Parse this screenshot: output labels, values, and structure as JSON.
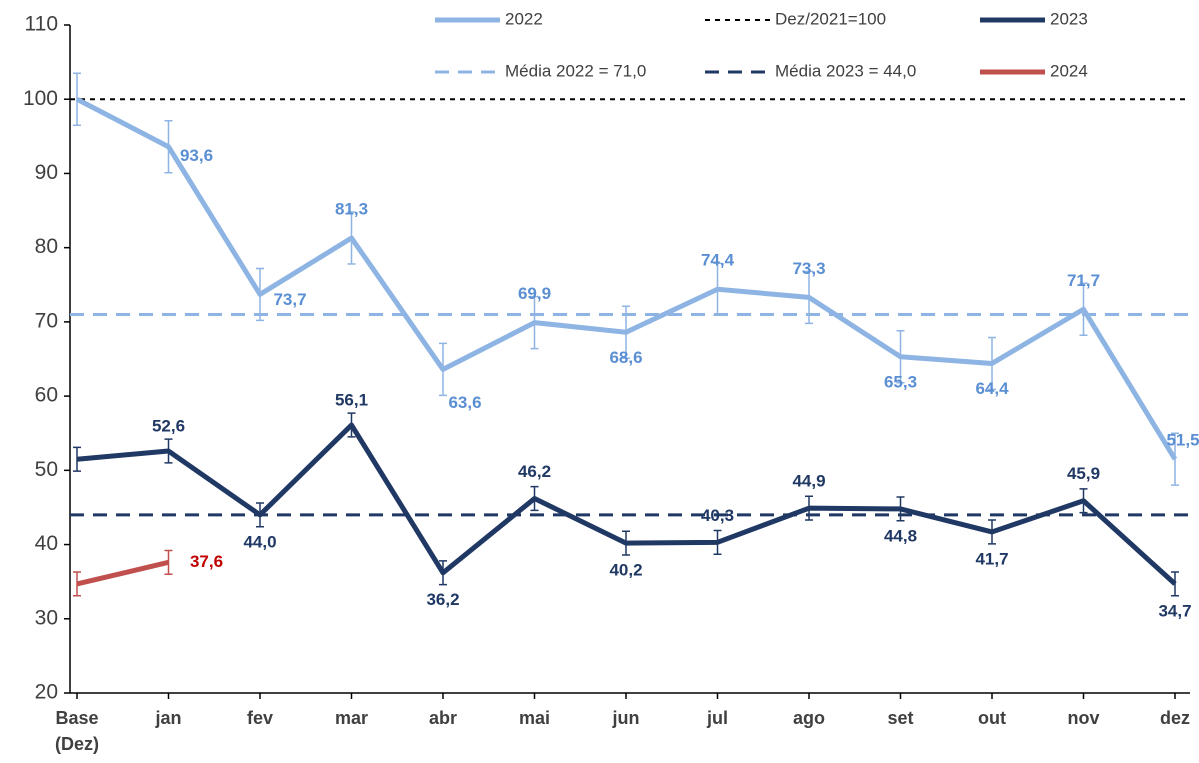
{
  "chart_data": {
    "type": "line",
    "categories": [
      "Base (Dez)",
      "jan",
      "fev",
      "mar",
      "abr",
      "mai",
      "jun",
      "jul",
      "ago",
      "set",
      "out",
      "nov",
      "dez"
    ],
    "ylim": [
      20,
      110
    ],
    "yticks": [
      20,
      30,
      40,
      50,
      60,
      70,
      80,
      90,
      100,
      110
    ],
    "series": [
      {
        "name": "2022",
        "color": "#8eb4e3",
        "label_color": "#5b8fd3",
        "values": [
          100,
          93.6,
          73.7,
          81.3,
          63.6,
          69.9,
          68.6,
          74.4,
          73.3,
          65.3,
          64.4,
          71.7,
          51.5
        ],
        "value_labels": [
          null,
          "93,6",
          "73,7",
          "81,3",
          "63,6",
          "69,9",
          "68,6",
          "74,4",
          "73,3",
          "65,3",
          "64,4",
          "71,7",
          "51,5"
        ],
        "errors": [
          3.5,
          3.5,
          3.5,
          3.5,
          3.5,
          3.5,
          3.5,
          3.5,
          3.5,
          3.5,
          3.5,
          3.5,
          3.5
        ]
      },
      {
        "name": "2023",
        "color": "#203864",
        "label_color": "#203864",
        "values": [
          51.5,
          52.6,
          44.0,
          56.1,
          36.2,
          46.2,
          40.2,
          40.3,
          44.9,
          44.8,
          41.7,
          45.9,
          34.7
        ],
        "value_labels": [
          null,
          "52,6",
          "44,0",
          "56,1",
          "36,2",
          "46,2",
          "40,2",
          "40,3",
          "44,9",
          "44,8",
          "41,7",
          "45,9",
          "34,7"
        ],
        "errors": [
          1.6,
          1.6,
          1.6,
          1.6,
          1.6,
          1.6,
          1.6,
          1.6,
          1.6,
          1.6,
          1.6,
          1.6,
          1.6
        ]
      },
      {
        "name": "2024",
        "color": "#c0504d",
        "label_color": "#c00000",
        "values": [
          34.7,
          37.6,
          null,
          null,
          null,
          null,
          null,
          null,
          null,
          null,
          null,
          null,
          null
        ],
        "value_labels": [
          null,
          "37,6",
          null,
          null,
          null,
          null,
          null,
          null,
          null,
          null,
          null,
          null,
          null
        ],
        "errors": [
          1.6,
          1.6,
          null,
          null,
          null,
          null,
          null,
          null,
          null,
          null,
          null,
          null,
          null
        ]
      }
    ],
    "reference_lines": [
      {
        "name": "Dez/2021=100",
        "value": 100,
        "color": "#000000",
        "dash": "short"
      },
      {
        "name": "Média 2022 = 71,0",
        "value": 71.0,
        "color": "#8eb4e3",
        "dash": "long"
      },
      {
        "name": "Média 2023 = 44,0",
        "value": 44.0,
        "color": "#203864",
        "dash": "long"
      }
    ]
  }
}
